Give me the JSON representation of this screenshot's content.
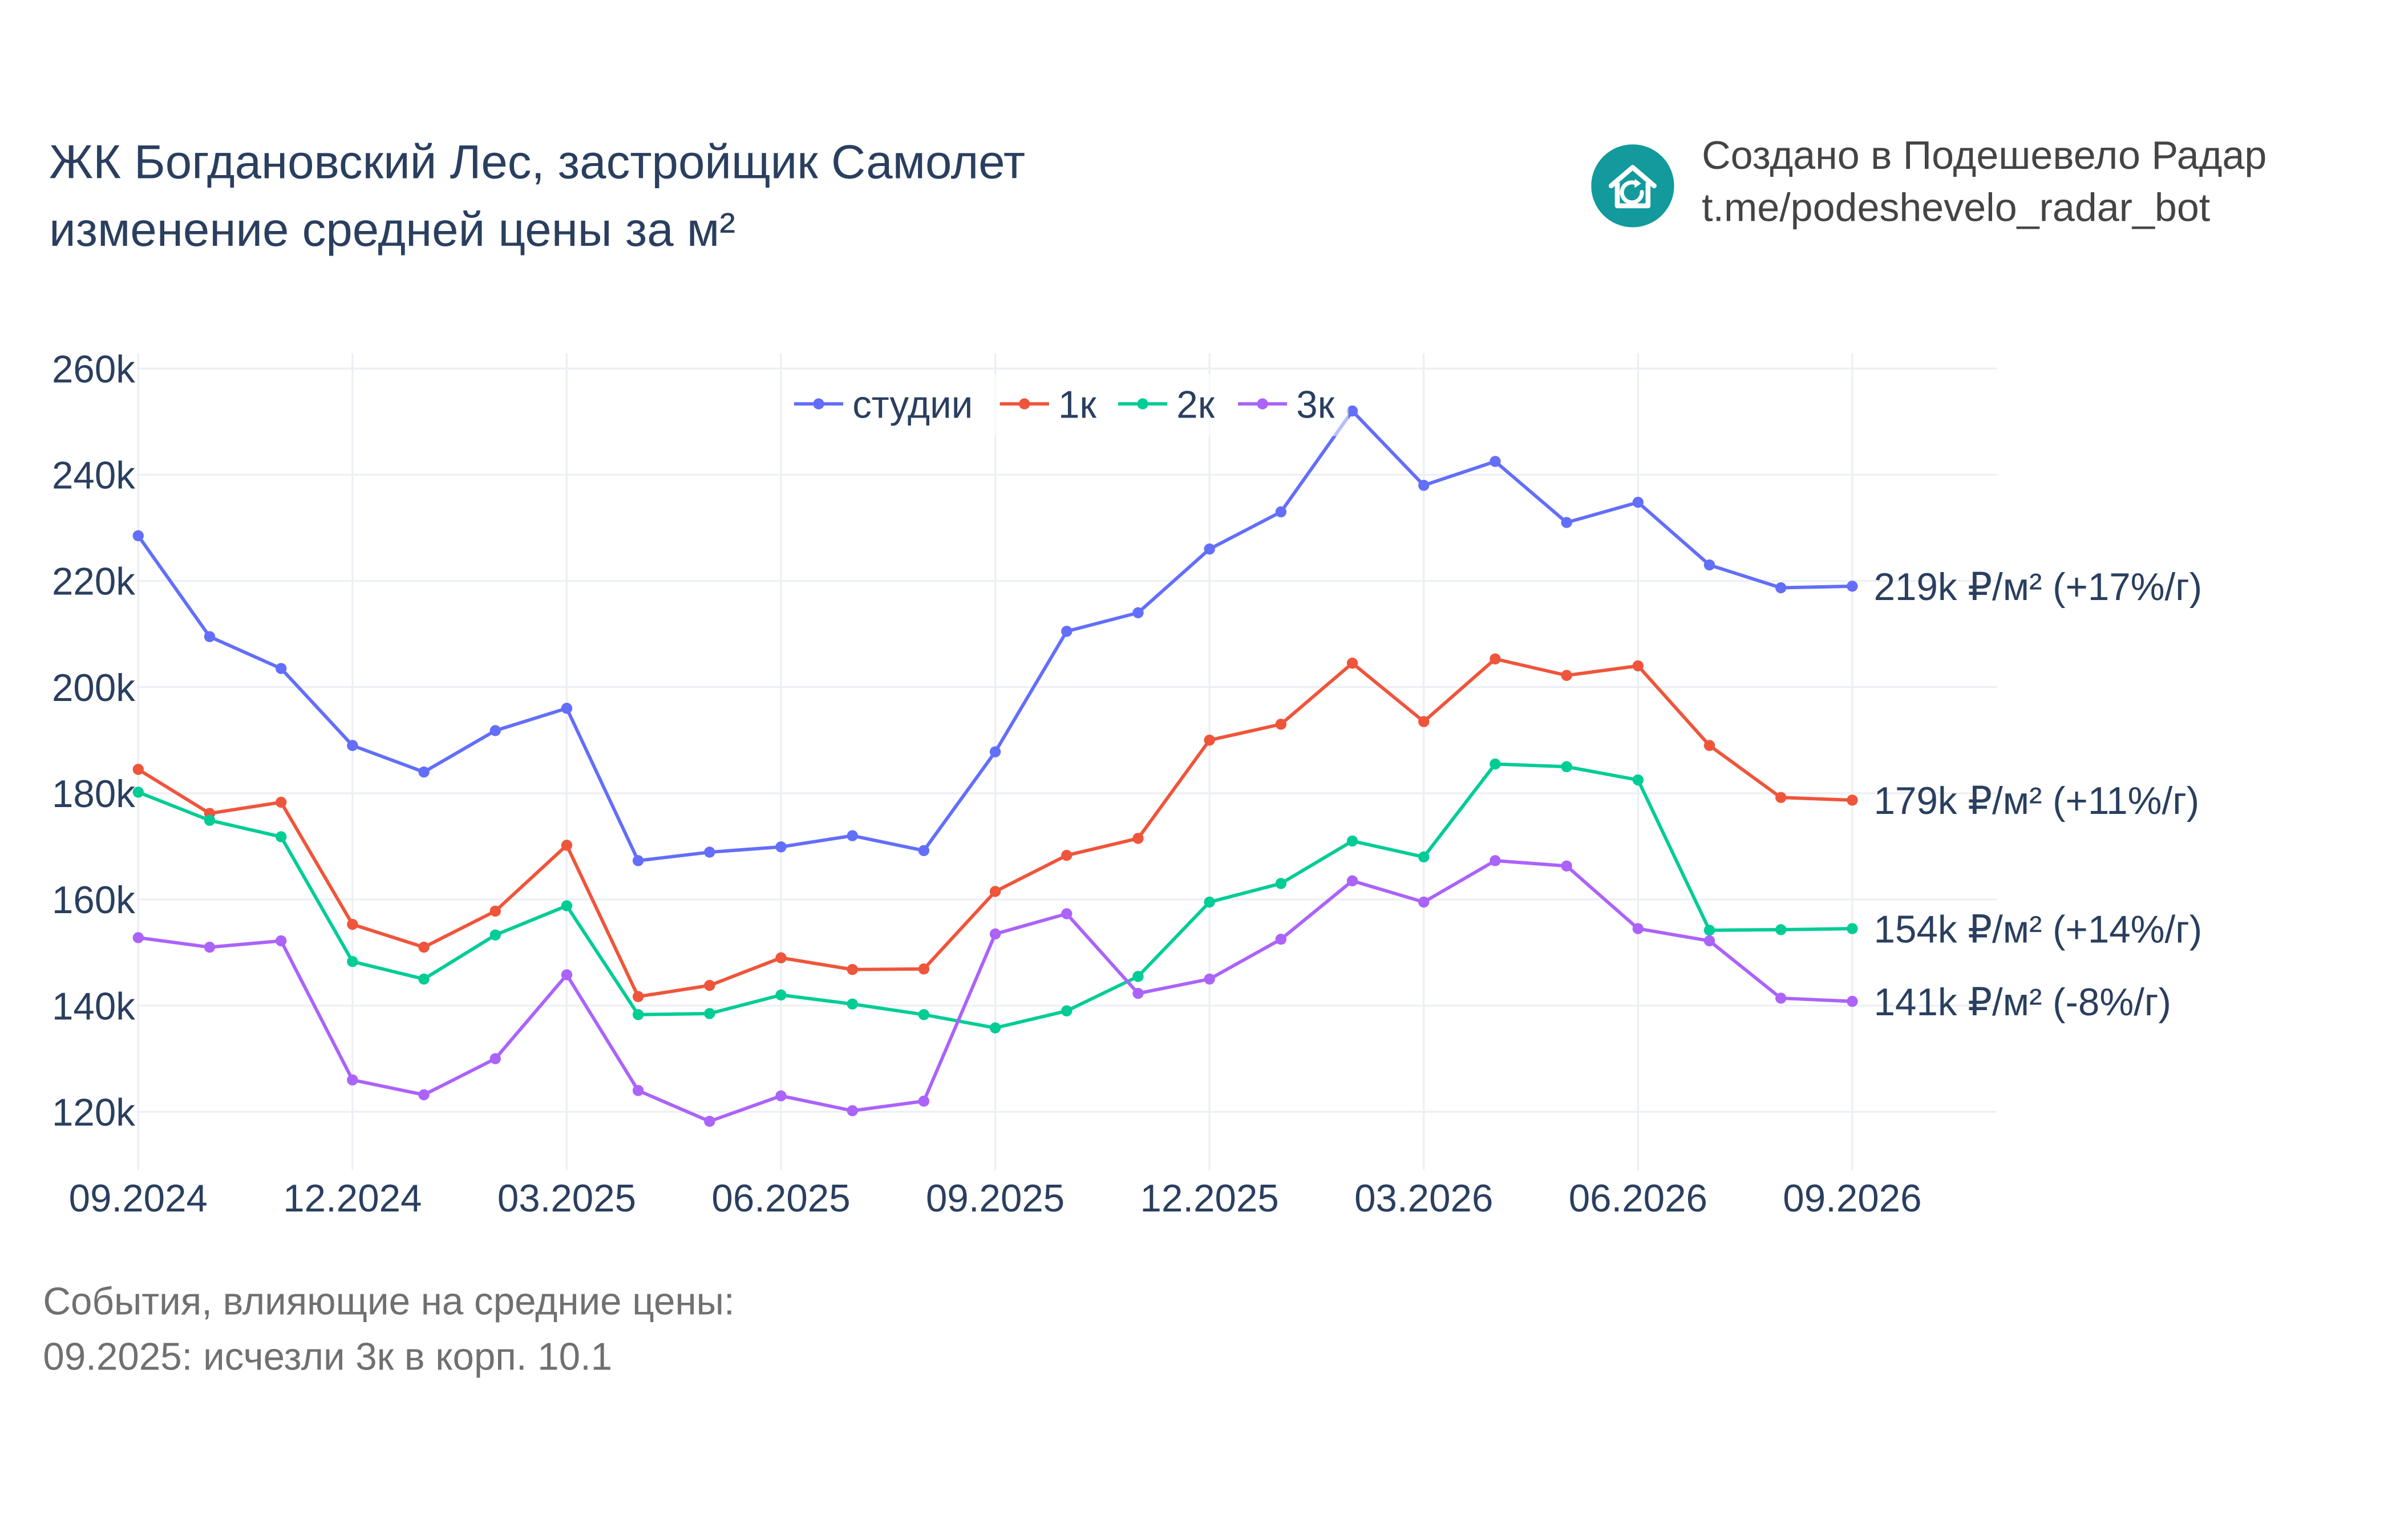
{
  "header": {
    "title_line1": "ЖК Богдановский Лес, застройщик Самолет",
    "title_line2": "изменение средней цены за м²"
  },
  "branding": {
    "line1": "Создано в Подешевело Радар",
    "line2": "t.me/podeshevelo_radar_bot",
    "logo_icon": "house-refresh-icon",
    "logo_color": "#129a9c"
  },
  "footer": {
    "line1": "События, влияющие на средние цены:",
    "line2": "09.2025: исчезли 3к в корп. 10.1"
  },
  "chart_data": {
    "type": "line",
    "x": [
      "09.2024",
      "10.2024",
      "11.2024",
      "12.2024",
      "01.2025",
      "02.2025",
      "03.2025",
      "04.2025",
      "05.2025",
      "06.2025",
      "07.2025",
      "08.2025",
      "09.2025",
      "10.2025",
      "11.2025",
      "12.2025",
      "01.2026",
      "02.2026",
      "03.2026",
      "04.2026",
      "05.2026",
      "06.2026",
      "07.2026",
      "08.2026",
      "09.2026"
    ],
    "x_tick_labels": [
      "09.2024",
      "12.2024",
      "03.2025",
      "06.2025",
      "09.2025",
      "12.2025",
      "03.2026",
      "06.2026",
      "09.2026"
    ],
    "y_tick_labels": [
      "120k",
      "140k",
      "160k",
      "180k",
      "200k",
      "220k",
      "240k",
      "260k"
    ],
    "y_ticks": [
      120000,
      140000,
      160000,
      180000,
      200000,
      220000,
      240000,
      260000
    ],
    "ylim": [
      110000,
      260000
    ],
    "grid": true,
    "legend_position": "top-center",
    "series": [
      {
        "name": "студии",
        "color": "#636efa",
        "end_label": "219k ₽/м² (+17%/г)",
        "values": [
          228500,
          209500,
          203500,
          189000,
          184000,
          191800,
          196000,
          167300,
          168900,
          169900,
          172000,
          169200,
          187800,
          210500,
          214000,
          226000,
          233000,
          252000,
          238000,
          242500,
          231000,
          234800,
          223000,
          218700,
          219000
        ]
      },
      {
        "name": "1к",
        "color": "#ef553b",
        "end_label": "179k ₽/м² (+11%/г)",
        "values": [
          184500,
          176200,
          178300,
          155300,
          151000,
          157800,
          170200,
          141700,
          143800,
          149000,
          146800,
          146900,
          161500,
          168300,
          171500,
          190000,
          193000,
          204500,
          193500,
          205300,
          202200,
          204000,
          189000,
          179200,
          178700
        ]
      },
      {
        "name": "2к",
        "color": "#00cc96",
        "end_label": "154k ₽/м² (+14%/г)",
        "values": [
          180200,
          174900,
          171800,
          148300,
          145000,
          153300,
          158800,
          138300,
          138500,
          142000,
          140300,
          138300,
          135800,
          139000,
          145500,
          159500,
          163000,
          171000,
          168000,
          185500,
          185000,
          182500,
          154200,
          154300,
          154500
        ]
      },
      {
        "name": "3к",
        "color": "#ab63fa",
        "end_label": "141k ₽/м² (-8%/г)",
        "values": [
          152800,
          151000,
          152200,
          126000,
          123200,
          130000,
          145800,
          124000,
          118200,
          123000,
          120200,
          122000,
          153500,
          157300,
          142300,
          145000,
          152500,
          163500,
          159500,
          167300,
          166300,
          154500,
          152200,
          141400,
          140800
        ]
      }
    ]
  }
}
